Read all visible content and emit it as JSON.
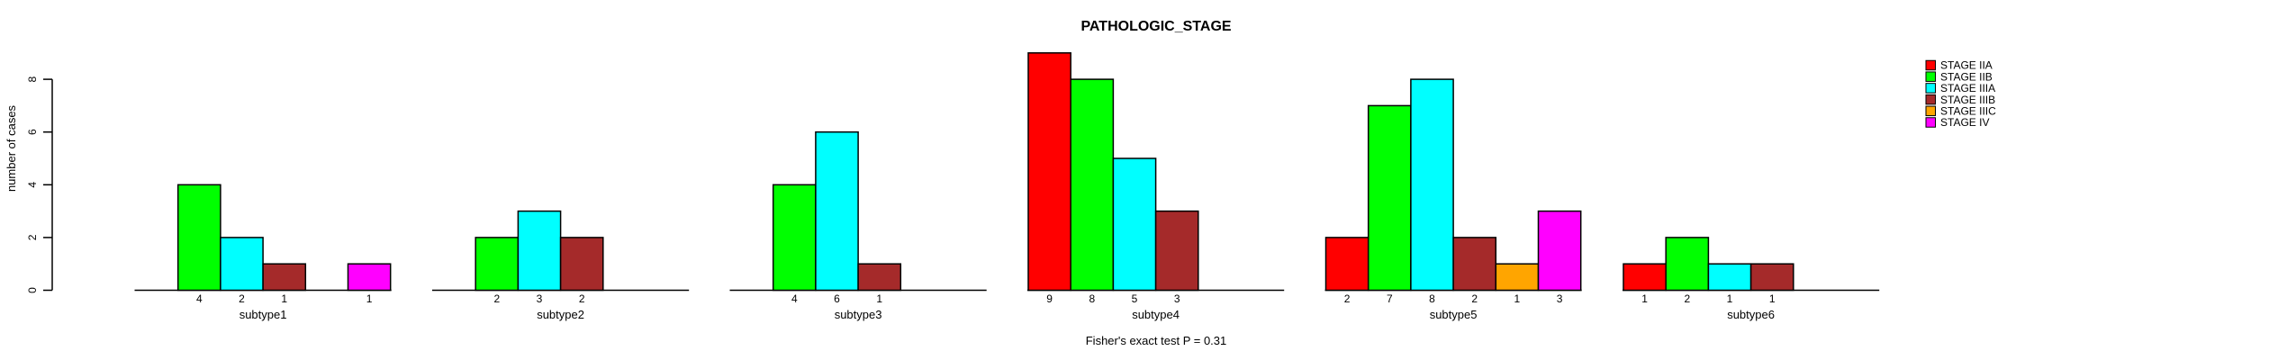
{
  "chart_data": {
    "type": "bar",
    "grouped": true,
    "title": "PATHOLOGIC_STAGE",
    "xlabel": "",
    "ylabel": "number of cases",
    "annotation": "Fisher's exact test P = 0.31",
    "ylim": [
      0,
      8
    ],
    "yticks": [
      0,
      2,
      4,
      6,
      8
    ],
    "grid": false,
    "legend_position": "right",
    "value_labels": true,
    "categories": [
      "subtype1",
      "subtype2",
      "subtype3",
      "subtype4",
      "subtype5",
      "subtype6"
    ],
    "series": [
      {
        "name": "STAGE IIA",
        "color": "#FF0000",
        "values": [
          0,
          0,
          0,
          9,
          2,
          1
        ]
      },
      {
        "name": "STAGE IIB",
        "color": "#00FF00",
        "values": [
          4,
          2,
          4,
          8,
          7,
          2
        ]
      },
      {
        "name": "STAGE IIIA",
        "color": "#00FFFF",
        "values": [
          2,
          3,
          6,
          5,
          8,
          1
        ]
      },
      {
        "name": "STAGE IIIB",
        "color": "#A52A2A",
        "values": [
          1,
          2,
          1,
          3,
          2,
          1
        ]
      },
      {
        "name": "STAGE IIIC",
        "color": "#FFA500",
        "values": [
          0,
          0,
          0,
          0,
          1,
          0
        ]
      },
      {
        "name": "STAGE IV",
        "color": "#FF00FF",
        "values": [
          1,
          0,
          0,
          0,
          3,
          0
        ]
      }
    ],
    "axis_color": "#000000",
    "bar_border_color": "#000000",
    "background_color": "#FFFFFF"
  }
}
